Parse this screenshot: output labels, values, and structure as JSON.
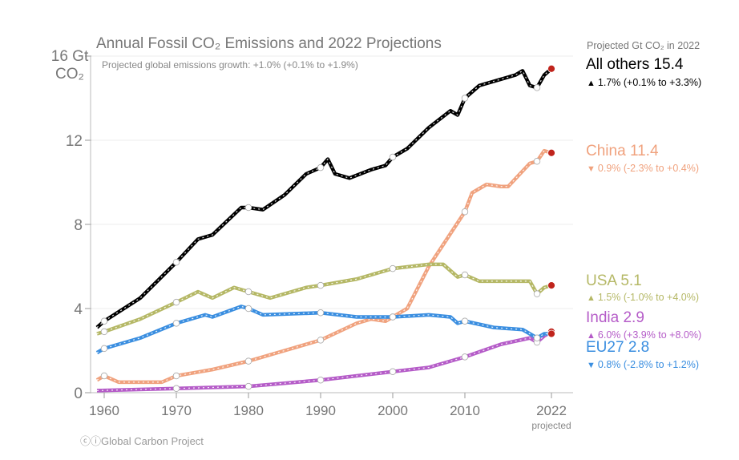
{
  "chart_data": {
    "type": "line",
    "title": "Annual Fossil CO₂ Emissions and 2022 Projections",
    "subtitle": "Projected global emissions growth: +1.0% (+0.1% to +1.9%)",
    "ylabel": "Gt CO₂",
    "y_unit_top": "16 Gt",
    "y_unit_bottom": "CO₂",
    "ylim": [
      0,
      16
    ],
    "yticks": [
      "0",
      "4",
      "8",
      "12"
    ],
    "xlim": [
      1959,
      2022
    ],
    "xticks": [
      "1960",
      "1970",
      "1980",
      "1990",
      "2000",
      "2010",
      "2022"
    ],
    "x_projected_label": "projected",
    "grid": true,
    "legend_header": "Projected Gt CO₂ in 2022",
    "series": [
      {
        "name": "All others",
        "color": "#000000",
        "value_2022": "15.4",
        "direction": "up",
        "growth": "1.7% (+0.1% to +3.3%)",
        "x": [
          1959,
          1960,
          1965,
          1970,
          1973,
          1975,
          1979,
          1980,
          1982,
          1985,
          1988,
          1990,
          1991,
          1992,
          1994,
          1997,
          1999,
          2000,
          2002,
          2005,
          2008,
          2009,
          2010,
          2012,
          2014,
          2017,
          2018,
          2019,
          2020,
          2021,
          2022
        ],
        "y": [
          3.1,
          3.4,
          4.5,
          6.2,
          7.3,
          7.5,
          8.8,
          8.8,
          8.7,
          9.4,
          10.4,
          10.7,
          11.1,
          10.4,
          10.2,
          10.6,
          10.8,
          11.2,
          11.6,
          12.6,
          13.4,
          13.2,
          14.0,
          14.6,
          14.8,
          15.1,
          15.3,
          14.6,
          14.5,
          15.1,
          15.4
        ]
      },
      {
        "name": "China",
        "color": "#f0a27e",
        "value_2022": "11.4",
        "direction": "down",
        "growth": "0.9% (-2.3% to +0.4%)",
        "x": [
          1959,
          1960,
          1962,
          1965,
          1968,
          1970,
          1975,
          1980,
          1985,
          1990,
          1995,
          1997,
          1999,
          2000,
          2002,
          2005,
          2010,
          2011,
          2013,
          2015,
          2016,
          2019,
          2020,
          2021,
          2022
        ],
        "y": [
          0.6,
          0.8,
          0.5,
          0.5,
          0.5,
          0.8,
          1.1,
          1.5,
          2.0,
          2.5,
          3.3,
          3.5,
          3.4,
          3.6,
          4.0,
          6.0,
          8.6,
          9.5,
          9.9,
          9.8,
          9.8,
          10.9,
          11.0,
          11.5,
          11.4
        ]
      },
      {
        "name": "USA",
        "color": "#b5b866",
        "value_2022": "5.1",
        "direction": "up",
        "growth": "1.5% (-1.0% to +4.0%)",
        "x": [
          1959,
          1960,
          1965,
          1970,
          1973,
          1975,
          1978,
          1980,
          1983,
          1988,
          1990,
          1995,
          2000,
          2005,
          2007,
          2009,
          2010,
          2012,
          2015,
          2019,
          2020,
          2021,
          2022
        ],
        "y": [
          2.8,
          2.9,
          3.5,
          4.3,
          4.8,
          4.5,
          5.0,
          4.8,
          4.5,
          5.0,
          5.1,
          5.4,
          5.9,
          6.1,
          6.1,
          5.5,
          5.6,
          5.3,
          5.3,
          5.3,
          4.7,
          5.0,
          5.1
        ]
      },
      {
        "name": "India",
        "color": "#b55cc8",
        "value_2022": "2.9",
        "direction": "up",
        "growth": "6.0% (+3.9% to +8.0%)",
        "x": [
          1959,
          1970,
          1980,
          1990,
          2000,
          2005,
          2010,
          2015,
          2019,
          2020,
          2021,
          2022
        ],
        "y": [
          0.1,
          0.2,
          0.3,
          0.6,
          1.0,
          1.2,
          1.7,
          2.3,
          2.6,
          2.4,
          2.7,
          2.9
        ]
      },
      {
        "name": "EU27",
        "color": "#3a8ee0",
        "value_2022": "2.8",
        "direction": "down",
        "growth": "0.8% (-2.8% to +1.2%)",
        "x": [
          1959,
          1960,
          1965,
          1970,
          1974,
          1975,
          1979,
          1980,
          1982,
          1990,
          1995,
          2000,
          2005,
          2008,
          2009,
          2010,
          2014,
          2018,
          2020,
          2021,
          2022
        ],
        "y": [
          1.9,
          2.1,
          2.6,
          3.3,
          3.7,
          3.6,
          4.1,
          4.0,
          3.7,
          3.8,
          3.6,
          3.6,
          3.7,
          3.6,
          3.3,
          3.4,
          3.1,
          3.0,
          2.6,
          2.8,
          2.8
        ]
      }
    ],
    "projection_marker_color": "#c0241c"
  },
  "footer": {
    "credit": "Global Carbon Project",
    "license_icons": "cc-by-icons"
  }
}
